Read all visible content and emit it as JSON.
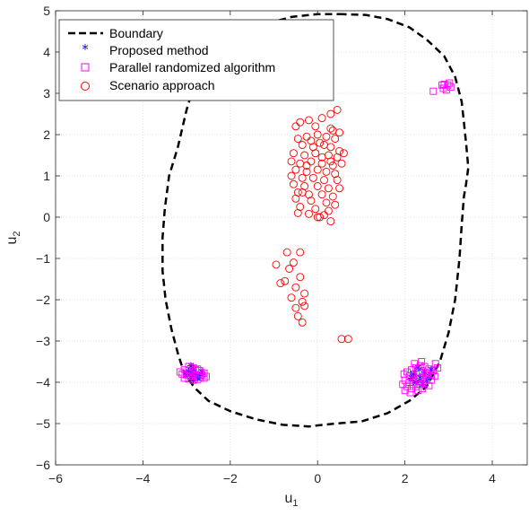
{
  "chart_data": {
    "type": "scatter",
    "title": "",
    "xlabel": {
      "main": "u",
      "sub": "1"
    },
    "ylabel": {
      "main": "u",
      "sub": "2"
    },
    "xlim": [
      -6,
      4.8
    ],
    "ylim": [
      -6,
      5
    ],
    "xticks": [
      -6,
      -4,
      -2,
      0,
      2,
      4
    ],
    "yticks": [
      -6,
      -5,
      -4,
      -3,
      -2,
      -1,
      0,
      1,
      2,
      3,
      4,
      5
    ],
    "grid": true,
    "legend_position": "top-left",
    "legend": [
      {
        "label": "Boundary",
        "style": "dashed-line",
        "color": "#000000"
      },
      {
        "label": "Proposed method",
        "style": "asterisk",
        "color": "#0000ff"
      },
      {
        "label": "Parallel randomized algorithm",
        "style": "square",
        "color": "#ff00ff"
      },
      {
        "label": "Scenario approach",
        "style": "circle",
        "color": "#ff0000"
      }
    ],
    "boundary": [
      [
        0.5,
        4.92
      ],
      [
        1.1,
        4.9
      ],
      [
        1.6,
        4.8
      ],
      [
        2.1,
        4.6
      ],
      [
        2.5,
        4.3
      ],
      [
        2.9,
        3.9
      ],
      [
        3.15,
        3.4
      ],
      [
        3.3,
        2.8
      ],
      [
        3.35,
        2.3
      ],
      [
        3.4,
        1.8
      ],
      [
        3.45,
        1.2
      ],
      [
        3.4,
        0.8
      ],
      [
        3.35,
        0.5
      ],
      [
        3.3,
        -0.2
      ],
      [
        3.25,
        -1.0
      ],
      [
        3.15,
        -2.0
      ],
      [
        3.0,
        -2.8
      ],
      [
        2.8,
        -3.5
      ],
      [
        2.5,
        -4.1
      ],
      [
        2.1,
        -4.45
      ],
      [
        1.6,
        -4.75
      ],
      [
        1.0,
        -4.95
      ],
      [
        0.4,
        -5.0
      ],
      [
        -0.2,
        -5.07
      ],
      [
        -0.8,
        -5.03
      ],
      [
        -1.4,
        -4.9
      ],
      [
        -2.0,
        -4.7
      ],
      [
        -2.5,
        -4.45
      ],
      [
        -2.8,
        -4.15
      ],
      [
        -3.05,
        -3.8
      ],
      [
        -3.2,
        -3.3
      ],
      [
        -3.35,
        -2.7
      ],
      [
        -3.48,
        -2.0
      ],
      [
        -3.55,
        -1.3
      ],
      [
        -3.55,
        -0.5
      ],
      [
        -3.5,
        0.2
      ],
      [
        -3.4,
        1.0
      ],
      [
        -3.2,
        1.7
      ],
      [
        -3.0,
        2.6
      ],
      [
        -2.8,
        3.3
      ],
      [
        -2.3,
        3.9
      ],
      [
        -1.9,
        4.3
      ],
      [
        -1.3,
        4.65
      ],
      [
        -0.6,
        4.85
      ],
      [
        0.0,
        4.92
      ],
      [
        0.5,
        4.92
      ]
    ],
    "series": [
      {
        "name": "Proposed method",
        "marker": "asterisk",
        "color": "#0000ff",
        "points": [
          [
            -2.9,
            -3.6
          ],
          [
            -2.85,
            -3.7
          ],
          [
            -2.95,
            -3.75
          ],
          [
            -2.8,
            -3.8
          ],
          [
            -2.7,
            -3.85
          ],
          [
            -2.75,
            -3.9
          ],
          [
            -2.9,
            -3.85
          ],
          [
            -2.65,
            -3.75
          ],
          [
            -2.85,
            -3.95
          ],
          [
            -3.0,
            -3.8
          ],
          [
            2.2,
            -3.8
          ],
          [
            2.35,
            -3.9
          ],
          [
            2.45,
            -3.75
          ],
          [
            2.3,
            -3.65
          ],
          [
            2.5,
            -3.95
          ],
          [
            2.4,
            -4.05
          ],
          [
            2.25,
            -4.0
          ],
          [
            2.55,
            -3.85
          ],
          [
            2.15,
            -3.9
          ],
          [
            2.6,
            -3.7
          ]
        ]
      },
      {
        "name": "Parallel randomized algorithm",
        "marker": "square",
        "color": "#ff00ff",
        "points": [
          [
            2.9,
            3.22
          ],
          [
            2.98,
            3.2
          ],
          [
            3.05,
            3.15
          ],
          [
            2.88,
            3.12
          ],
          [
            2.95,
            3.08
          ],
          [
            3.02,
            3.25
          ],
          [
            2.65,
            3.05
          ],
          [
            2.85,
            3.2
          ],
          [
            -2.95,
            -3.62
          ],
          [
            -2.85,
            -3.65
          ],
          [
            -2.75,
            -3.68
          ],
          [
            -3.05,
            -3.7
          ],
          [
            -2.95,
            -3.72
          ],
          [
            -2.85,
            -3.75
          ],
          [
            -2.7,
            -3.72
          ],
          [
            -2.6,
            -3.78
          ],
          [
            -3.1,
            -3.8
          ],
          [
            -3.0,
            -3.82
          ],
          [
            -2.9,
            -3.85
          ],
          [
            -2.8,
            -3.82
          ],
          [
            -2.7,
            -3.88
          ],
          [
            -2.6,
            -3.9
          ],
          [
            -3.05,
            -3.9
          ],
          [
            -2.95,
            -3.92
          ],
          [
            -2.85,
            -3.95
          ],
          [
            -2.75,
            -3.93
          ],
          [
            -2.65,
            -3.82
          ],
          [
            -2.55,
            -3.86
          ],
          [
            -3.15,
            -3.75
          ],
          [
            -2.8,
            -3.7
          ],
          [
            2.05,
            -3.75
          ],
          [
            2.15,
            -3.7
          ],
          [
            2.25,
            -3.65
          ],
          [
            2.35,
            -3.6
          ],
          [
            2.45,
            -3.62
          ],
          [
            2.55,
            -3.68
          ],
          [
            2.65,
            -3.72
          ],
          [
            2.1,
            -3.85
          ],
          [
            2.2,
            -3.8
          ],
          [
            2.3,
            -3.75
          ],
          [
            2.4,
            -3.72
          ],
          [
            2.5,
            -3.78
          ],
          [
            2.6,
            -3.82
          ],
          [
            2.7,
            -3.55
          ],
          [
            2.0,
            -3.95
          ],
          [
            2.1,
            -4.0
          ],
          [
            2.2,
            -3.95
          ],
          [
            2.3,
            -3.9
          ],
          [
            2.4,
            -3.88
          ],
          [
            2.5,
            -3.92
          ],
          [
            2.6,
            -3.95
          ],
          [
            2.05,
            -4.1
          ],
          [
            2.15,
            -4.15
          ],
          [
            2.25,
            -4.1
          ],
          [
            2.35,
            -4.05
          ],
          [
            2.45,
            -4.02
          ],
          [
            2.55,
            -4.08
          ],
          [
            1.95,
            -4.05
          ],
          [
            2.0,
            -4.2
          ],
          [
            2.12,
            -4.25
          ],
          [
            2.3,
            -4.2
          ],
          [
            2.4,
            -4.15
          ],
          [
            2.68,
            -3.85
          ],
          [
            2.75,
            -3.65
          ],
          [
            2.38,
            -3.5
          ],
          [
            2.22,
            -3.55
          ],
          [
            1.98,
            -3.8
          ],
          [
            2.48,
            -3.82
          ],
          [
            2.32,
            -3.98
          ],
          [
            2.18,
            -4.05
          ]
        ]
      },
      {
        "name": "Scenario approach",
        "marker": "circle",
        "color": "#ff0000",
        "points": [
          [
            -0.5,
            2.2
          ],
          [
            -0.4,
            2.3
          ],
          [
            -0.2,
            2.35
          ],
          [
            0.1,
            2.4
          ],
          [
            0.3,
            2.5
          ],
          [
            0.45,
            2.6
          ],
          [
            -0.05,
            2.2
          ],
          [
            0.35,
            2.1
          ],
          [
            0.5,
            2.05
          ],
          [
            -0.45,
            1.9
          ],
          [
            -0.25,
            1.95
          ],
          [
            0.0,
            2.0
          ],
          [
            0.2,
            1.95
          ],
          [
            0.4,
            1.9
          ],
          [
            0.05,
            1.8
          ],
          [
            -0.35,
            1.75
          ],
          [
            -0.1,
            1.7
          ],
          [
            0.15,
            1.75
          ],
          [
            0.3,
            1.7
          ],
          [
            0.5,
            1.6
          ],
          [
            -0.55,
            1.55
          ],
          [
            -0.3,
            1.5
          ],
          [
            -0.05,
            1.55
          ],
          [
            0.25,
            1.5
          ],
          [
            0.45,
            1.45
          ],
          [
            0.6,
            1.55
          ],
          [
            -0.6,
            1.35
          ],
          [
            -0.4,
            1.3
          ],
          [
            -0.15,
            1.35
          ],
          [
            0.1,
            1.3
          ],
          [
            0.35,
            1.25
          ],
          [
            0.55,
            1.3
          ],
          [
            -0.5,
            1.15
          ],
          [
            -0.25,
            1.1
          ],
          [
            0.0,
            1.15
          ],
          [
            0.2,
            1.1
          ],
          [
            0.4,
            1.05
          ],
          [
            -0.6,
            1.0
          ],
          [
            -0.35,
            0.95
          ],
          [
            -0.1,
            0.95
          ],
          [
            0.15,
            0.9
          ],
          [
            0.45,
            0.9
          ],
          [
            -0.55,
            0.8
          ],
          [
            -0.3,
            0.75
          ],
          [
            0.0,
            0.75
          ],
          [
            0.25,
            0.7
          ],
          [
            0.5,
            0.7
          ],
          [
            -0.45,
            0.6
          ],
          [
            -0.2,
            0.55
          ],
          [
            0.1,
            0.55
          ],
          [
            0.35,
            0.5
          ],
          [
            -0.5,
            0.45
          ],
          [
            -0.15,
            0.4
          ],
          [
            0.2,
            0.35
          ],
          [
            0.4,
            0.3
          ],
          [
            -0.4,
            0.25
          ],
          [
            -0.05,
            0.2
          ],
          [
            0.25,
            0.15
          ],
          [
            -0.45,
            0.1
          ],
          [
            -0.2,
            0.08
          ],
          [
            0.15,
            0.05
          ],
          [
            0.0,
            0.0
          ],
          [
            0.05,
            0.0
          ],
          [
            0.3,
            -0.1
          ],
          [
            -0.25,
            1.25
          ],
          [
            0.3,
            1.35
          ],
          [
            -0.15,
            1.85
          ],
          [
            0.3,
            2.15
          ],
          [
            -0.35,
            0.6
          ],
          [
            0.1,
            1.45
          ],
          [
            -0.4,
            -0.85
          ],
          [
            -0.7,
            -0.85
          ],
          [
            -0.55,
            -1.1
          ],
          [
            -0.95,
            -1.15
          ],
          [
            -0.65,
            -1.25
          ],
          [
            -0.4,
            -1.45
          ],
          [
            -0.75,
            -1.55
          ],
          [
            -0.5,
            -1.7
          ],
          [
            -0.3,
            -1.85
          ],
          [
            -0.6,
            -1.95
          ],
          [
            -0.35,
            -2.05
          ],
          [
            -0.5,
            -2.2
          ],
          [
            -0.3,
            -2.15
          ],
          [
            -0.45,
            -2.4
          ],
          [
            -0.35,
            -2.55
          ],
          [
            -0.85,
            -1.6
          ],
          [
            0.55,
            -2.95
          ],
          [
            0.7,
            -2.95
          ]
        ]
      }
    ]
  }
}
